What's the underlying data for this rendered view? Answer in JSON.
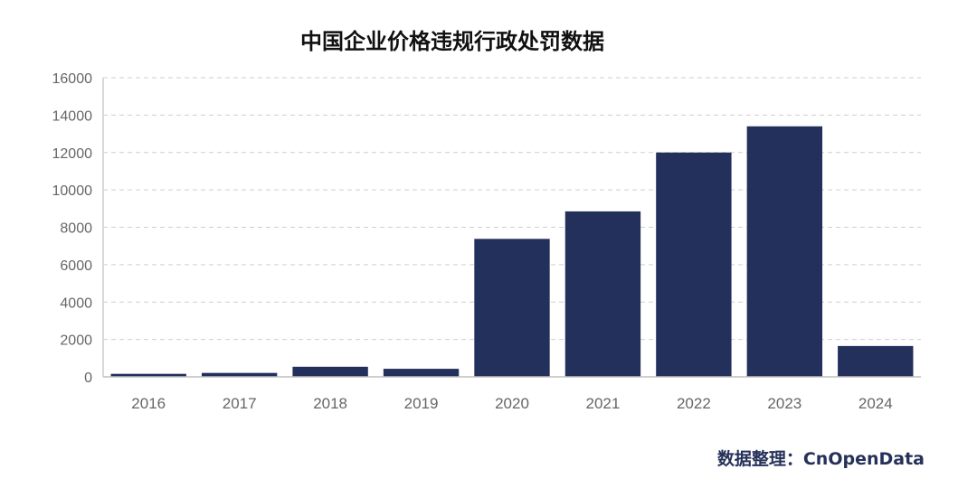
{
  "chart_data": {
    "type": "bar",
    "title": "中国企业价格违规行政处罚数据",
    "categories": [
      "2016",
      "2017",
      "2018",
      "2019",
      "2020",
      "2021",
      "2022",
      "2023",
      "2024"
    ],
    "values": [
      160,
      210,
      540,
      430,
      7380,
      8850,
      12000,
      13400,
      1650
    ],
    "ylim": [
      0,
      16000
    ],
    "yticks": [
      0,
      2000,
      4000,
      6000,
      8000,
      10000,
      12000,
      14000,
      16000
    ],
    "xlabel": "",
    "ylabel": "",
    "grid": "horizontal dashed",
    "legend": "none",
    "bar_color": "#23305C",
    "source": "数据整理：CnOpenData"
  }
}
